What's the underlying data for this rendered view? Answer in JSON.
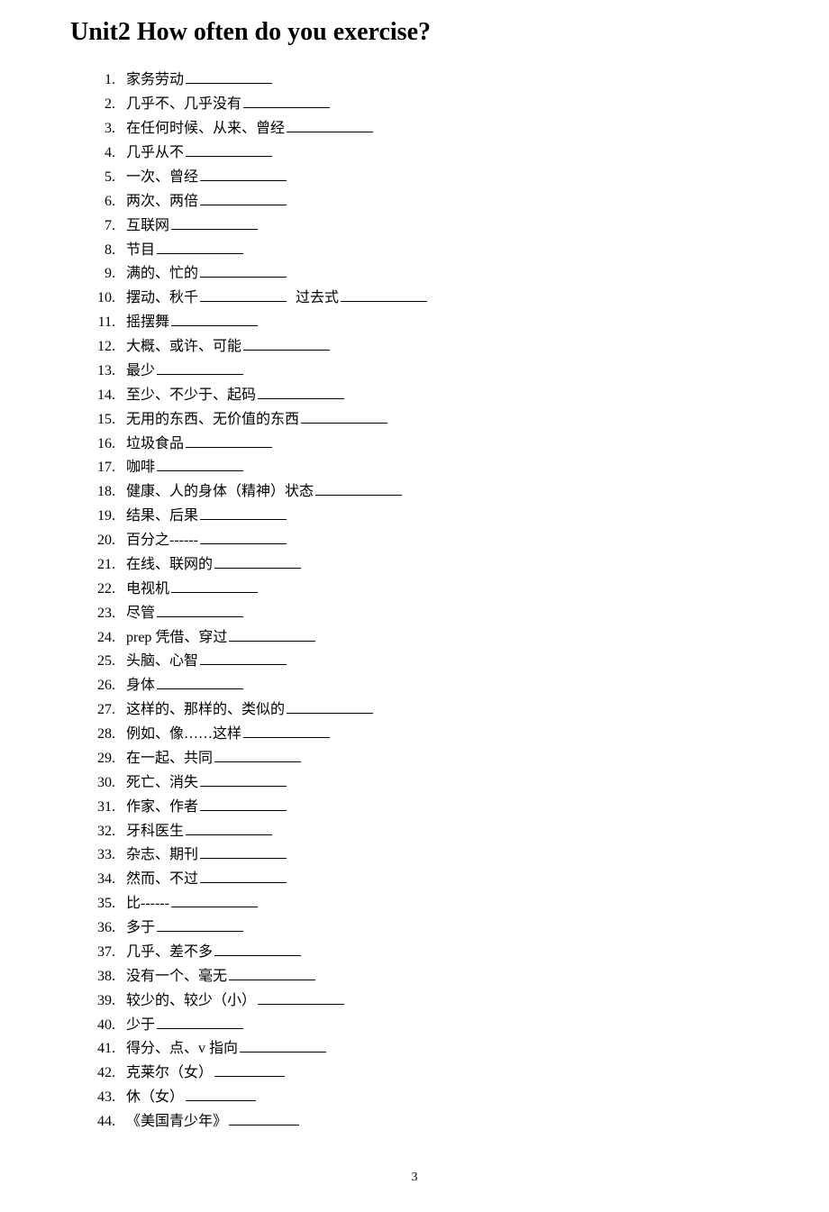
{
  "title": "Unit2 How often do you exercise?",
  "page_number": "3",
  "blank_widths": {
    "std": 96,
    "sm": 78
  },
  "items": [
    {
      "text": "家务劳动",
      "blank": "std"
    },
    {
      "text": "几乎不、几乎没有",
      "blank": "std"
    },
    {
      "text": "在任何时候、从来、曾经",
      "blank": "std"
    },
    {
      "text": "几乎从不",
      "blank": "std"
    },
    {
      "text": "一次、曾经",
      "blank": "std"
    },
    {
      "text": "两次、两倍",
      "blank": "std"
    },
    {
      "text": "互联网",
      "blank": "std"
    },
    {
      "text": "节目",
      "blank": "std"
    },
    {
      "text": "满的、忙的",
      "blank": "std"
    },
    {
      "text": "摆动、秋千",
      "blank": "std",
      "extra_label": "过去式",
      "extra_blank": "std"
    },
    {
      "text": "摇摆舞",
      "blank": "std"
    },
    {
      "text": "大概、或许、可能",
      "blank": "std"
    },
    {
      "text": "最少",
      "blank": "std"
    },
    {
      "text": "至少、不少于、起码",
      "blank": "std"
    },
    {
      "text": "无用的东西、无价值的东西",
      "blank": "std"
    },
    {
      "text": "垃圾食品",
      "blank": "std"
    },
    {
      "text": "咖啡",
      "blank": "std"
    },
    {
      "text": "健康、人的身体（精神）状态",
      "blank": "std"
    },
    {
      "text": "结果、后果",
      "blank": "std"
    },
    {
      "text": "百分之------",
      "blank": "std"
    },
    {
      "text": "在线、联网的",
      "blank": "std"
    },
    {
      "text": "电视机",
      "blank": "std"
    },
    {
      "text": "尽管",
      "blank": "std"
    },
    {
      "text": "prep 凭借、穿过",
      "blank": "std"
    },
    {
      "text": "头脑、心智",
      "blank": "std"
    },
    {
      "text": "身体",
      "blank": "std"
    },
    {
      "text": "这样的、那样的、类似的",
      "blank": "std"
    },
    {
      "text": "例如、像……这样",
      "blank": "std"
    },
    {
      "text": "在一起、共同",
      "blank": "std"
    },
    {
      "text": "死亡、消失",
      "blank": "std"
    },
    {
      "text": "作家、作者",
      "blank": "std"
    },
    {
      "text": "牙科医生",
      "blank": "std"
    },
    {
      "text": "杂志、期刊",
      "blank": "std"
    },
    {
      "text": "然而、不过",
      "blank": "std"
    },
    {
      "text": "比------",
      "blank": "std"
    },
    {
      "text": "多于",
      "blank": "std"
    },
    {
      "text": "几乎、差不多",
      "blank": "std"
    },
    {
      "text": "没有一个、毫无",
      "blank": "std"
    },
    {
      "text": "较少的、较少（小）",
      "blank": "std"
    },
    {
      "text": "少于",
      "blank": "std"
    },
    {
      "text": "得分、点、v 指向",
      "blank": "std"
    },
    {
      "text": "克莱尔（女）",
      "blank": "sm"
    },
    {
      "text": "休（女）",
      "blank": "sm"
    },
    {
      "text": "《美国青少年》",
      "blank": "sm"
    }
  ]
}
